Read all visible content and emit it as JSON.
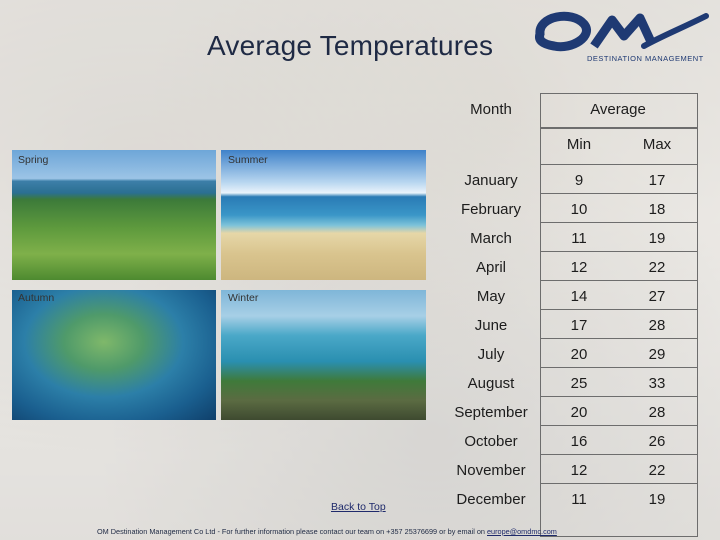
{
  "page": {
    "title": "Average Temperatures",
    "logo_text": "DESTINATION MANAGEMENT",
    "back_link": "Back to Top",
    "footer_prefix": "OM Destination Management Co Ltd - For further information please contact our team on +357 25376699 or by email on ",
    "footer_email": "europe@omdmc.com"
  },
  "photos": [
    {
      "key": "spring",
      "label": "Spring"
    },
    {
      "key": "summer",
      "label": "Summer"
    },
    {
      "key": "autumn",
      "label": "Autumn"
    },
    {
      "key": "winter",
      "label": "Winter"
    }
  ],
  "table": {
    "headers": {
      "month": "Month",
      "average": "Average",
      "min": "Min",
      "max": "Max"
    },
    "rows": [
      {
        "month": "January",
        "min": "9",
        "max": "17"
      },
      {
        "month": "February",
        "min": "10",
        "max": "18"
      },
      {
        "month": "March",
        "min": "11",
        "max": "19"
      },
      {
        "month": "April",
        "min": "12",
        "max": "22"
      },
      {
        "month": "May",
        "min": "14",
        "max": "27"
      },
      {
        "month": "June",
        "min": "17",
        "max": "28"
      },
      {
        "month": "July",
        "min": "20",
        "max": "29"
      },
      {
        "month": "August",
        "min": "25",
        "max": "33"
      },
      {
        "month": "September",
        "min": "20",
        "max": "28"
      },
      {
        "month": "October",
        "min": "16",
        "max": "26"
      },
      {
        "month": "November",
        "min": "12",
        "max": "22"
      },
      {
        "month": "December",
        "min": "11",
        "max": "19"
      }
    ]
  },
  "colors": {
    "title": "#1f2a44",
    "logo": "#1f3a73",
    "grid": "#6d6d6d"
  }
}
